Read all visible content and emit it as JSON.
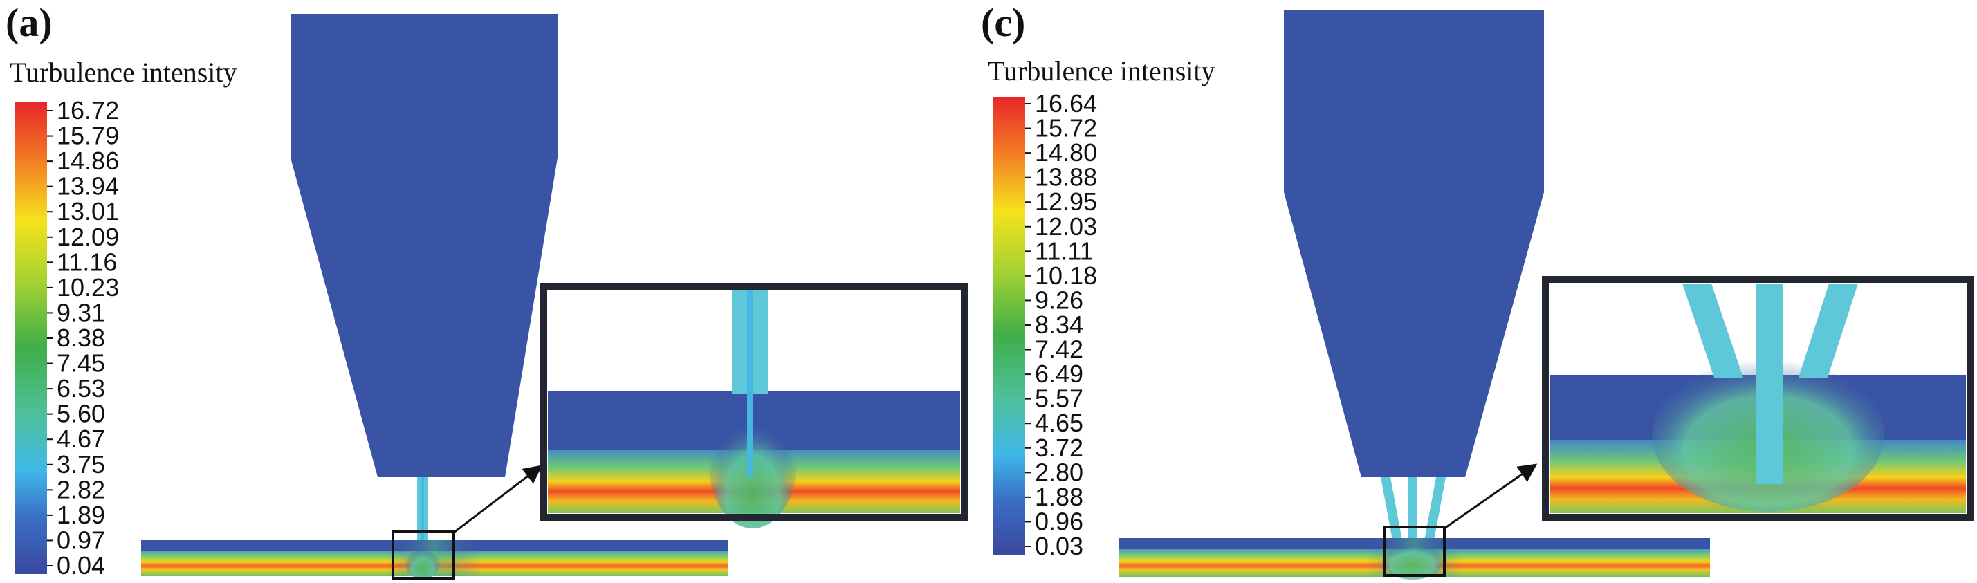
{
  "panels": [
    {
      "label": "(a)",
      "legend_title": "Turbulence intensity",
      "ticks": [
        "16.72",
        "15.79",
        "14.86",
        "13.94",
        "13.01",
        "12.09",
        "11.16",
        "10.23",
        "9.31",
        "8.38",
        "7.45",
        "6.53",
        "5.60",
        "4.67",
        "3.75",
        "2.82",
        "1.89",
        "0.97",
        "0.04"
      ],
      "nozzle_jets": 1
    },
    {
      "label": "(c)",
      "legend_title": "Turbulence intensity",
      "ticks": [
        "16.64",
        "15.72",
        "14.80",
        "13.88",
        "12.95",
        "12.03",
        "11.11",
        "10.18",
        "9.26",
        "8.34",
        "7.42",
        "6.49",
        "5.57",
        "4.65",
        "3.72",
        "2.80",
        "1.88",
        "0.96",
        "0.03"
      ],
      "nozzle_jets": 3
    }
  ],
  "colors": {
    "background_field": "#3a54a5",
    "jet": "#5fc8d8",
    "frame": "#222631",
    "arrow": "#111111"
  }
}
